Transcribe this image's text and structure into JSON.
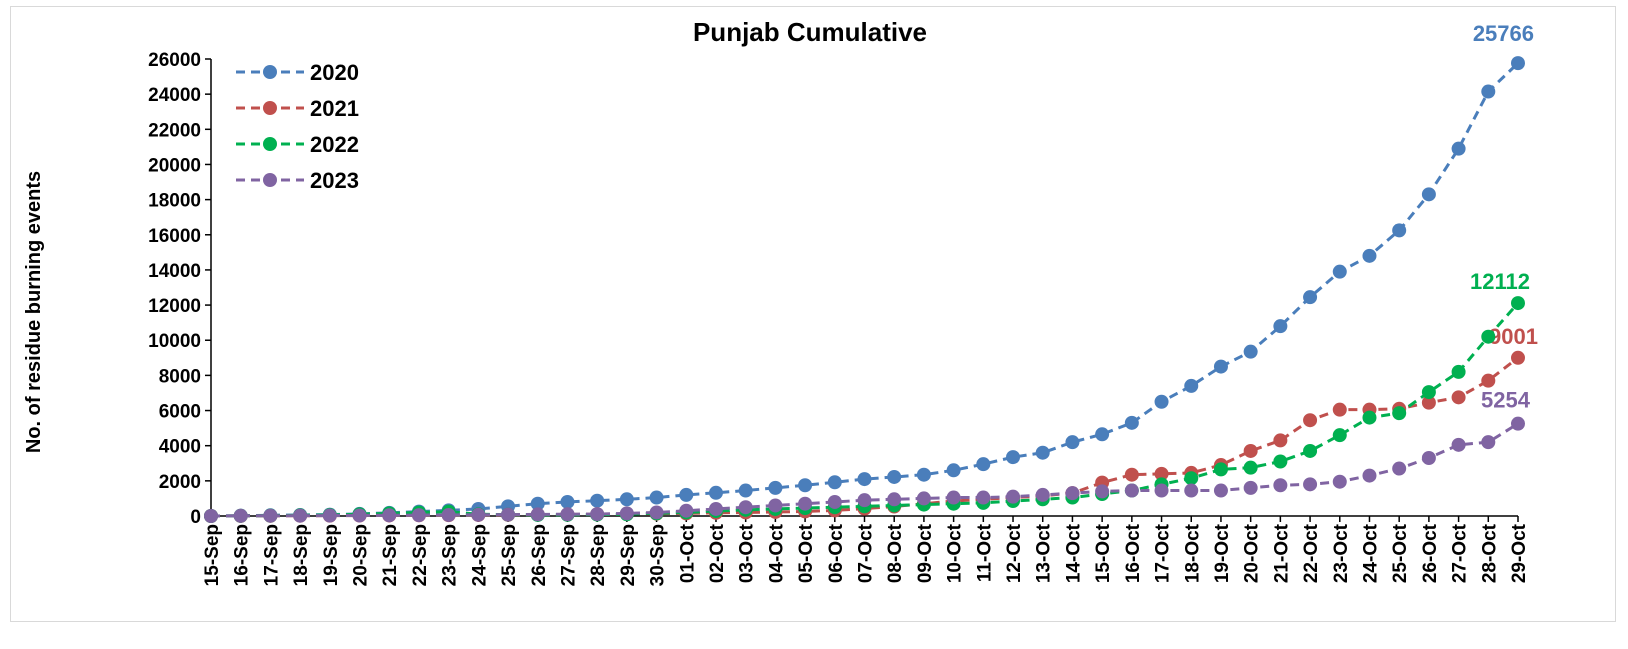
{
  "chart_data": {
    "type": "line",
    "title": "Punjab Cumulative",
    "ylabel": "No. of residue burning events",
    "xlabel": "",
    "ylim": [
      0,
      26000
    ],
    "yticks": [
      0,
      2000,
      4000,
      6000,
      8000,
      10000,
      12000,
      14000,
      16000,
      18000,
      20000,
      22000,
      24000,
      26000
    ],
    "legend_position": "top-left",
    "categories": [
      "15-Sep",
      "16-Sep",
      "17-Sep",
      "18-Sep",
      "19-Sep",
      "20-Sep",
      "21-Sep",
      "22-Sep",
      "23-Sep",
      "24-Sep",
      "25-Sep",
      "26-Sep",
      "27-Sep",
      "28-Sep",
      "29-Sep",
      "30-Sep",
      "01-Oct",
      "02-Oct",
      "03-Oct",
      "04-Oct",
      "05-Oct",
      "06-Oct",
      "07-Oct",
      "08-Oct",
      "09-Oct",
      "10-Oct",
      "11-Oct",
      "12-Oct",
      "13-Oct",
      "14-Oct",
      "15-Oct",
      "16-Oct",
      "17-Oct",
      "18-Oct",
      "19-Oct",
      "20-Oct",
      "21-Oct",
      "22-Oct",
      "23-Oct",
      "24-Oct",
      "25-Oct",
      "26-Oct",
      "27-Oct",
      "28-Oct",
      "29-Oct"
    ],
    "series": [
      {
        "name": "2020",
        "color": "#4a7ebb",
        "end_label": "25766",
        "values": [
          0,
          20,
          40,
          60,
          80,
          120,
          180,
          250,
          320,
          400,
          550,
          700,
          800,
          870,
          950,
          1050,
          1200,
          1320,
          1450,
          1600,
          1750,
          1920,
          2100,
          2220,
          2350,
          2600,
          2950,
          3350,
          3600,
          4200,
          4650,
          5300,
          6500,
          7400,
          8500,
          9350,
          10800,
          12450,
          13900,
          14800,
          16250,
          18300,
          20900,
          24150,
          25766
        ]
      },
      {
        "name": "2021",
        "color": "#c0504d",
        "end_label": "9001",
        "values": [
          0,
          5,
          10,
          15,
          20,
          25,
          30,
          40,
          50,
          60,
          70,
          80,
          90,
          100,
          110,
          130,
          150,
          180,
          200,
          230,
          260,
          320,
          420,
          540,
          700,
          850,
          950,
          1050,
          1150,
          1300,
          1900,
          2350,
          2400,
          2450,
          2900,
          3700,
          4300,
          5450,
          6050,
          6050,
          6100,
          6450,
          6750,
          7700,
          9001
        ]
      },
      {
        "name": "2022",
        "color": "#00b050",
        "end_label": "12112",
        "values": [
          0,
          10,
          20,
          40,
          60,
          100,
          150,
          200,
          250,
          100,
          80,
          60,
          70,
          80,
          100,
          150,
          200,
          280,
          350,
          400,
          450,
          500,
          550,
          600,
          650,
          700,
          750,
          850,
          950,
          1050,
          1250,
          1450,
          1800,
          2150,
          2650,
          2750,
          3100,
          3700,
          4600,
          5600,
          5850,
          7050,
          8200,
          10200,
          12112
        ]
      },
      {
        "name": "2023",
        "color": "#8064a2",
        "end_label": "5254",
        "values": [
          0,
          10,
          15,
          20,
          25,
          30,
          40,
          50,
          60,
          70,
          80,
          90,
          100,
          110,
          150,
          200,
          300,
          400,
          500,
          600,
          700,
          800,
          900,
          950,
          1000,
          1050,
          1050,
          1100,
          1200,
          1300,
          1400,
          1450,
          1450,
          1450,
          1450,
          1600,
          1750,
          1800,
          1950,
          2300,
          2700,
          3300,
          4050,
          4200,
          5254
        ]
      }
    ]
  }
}
